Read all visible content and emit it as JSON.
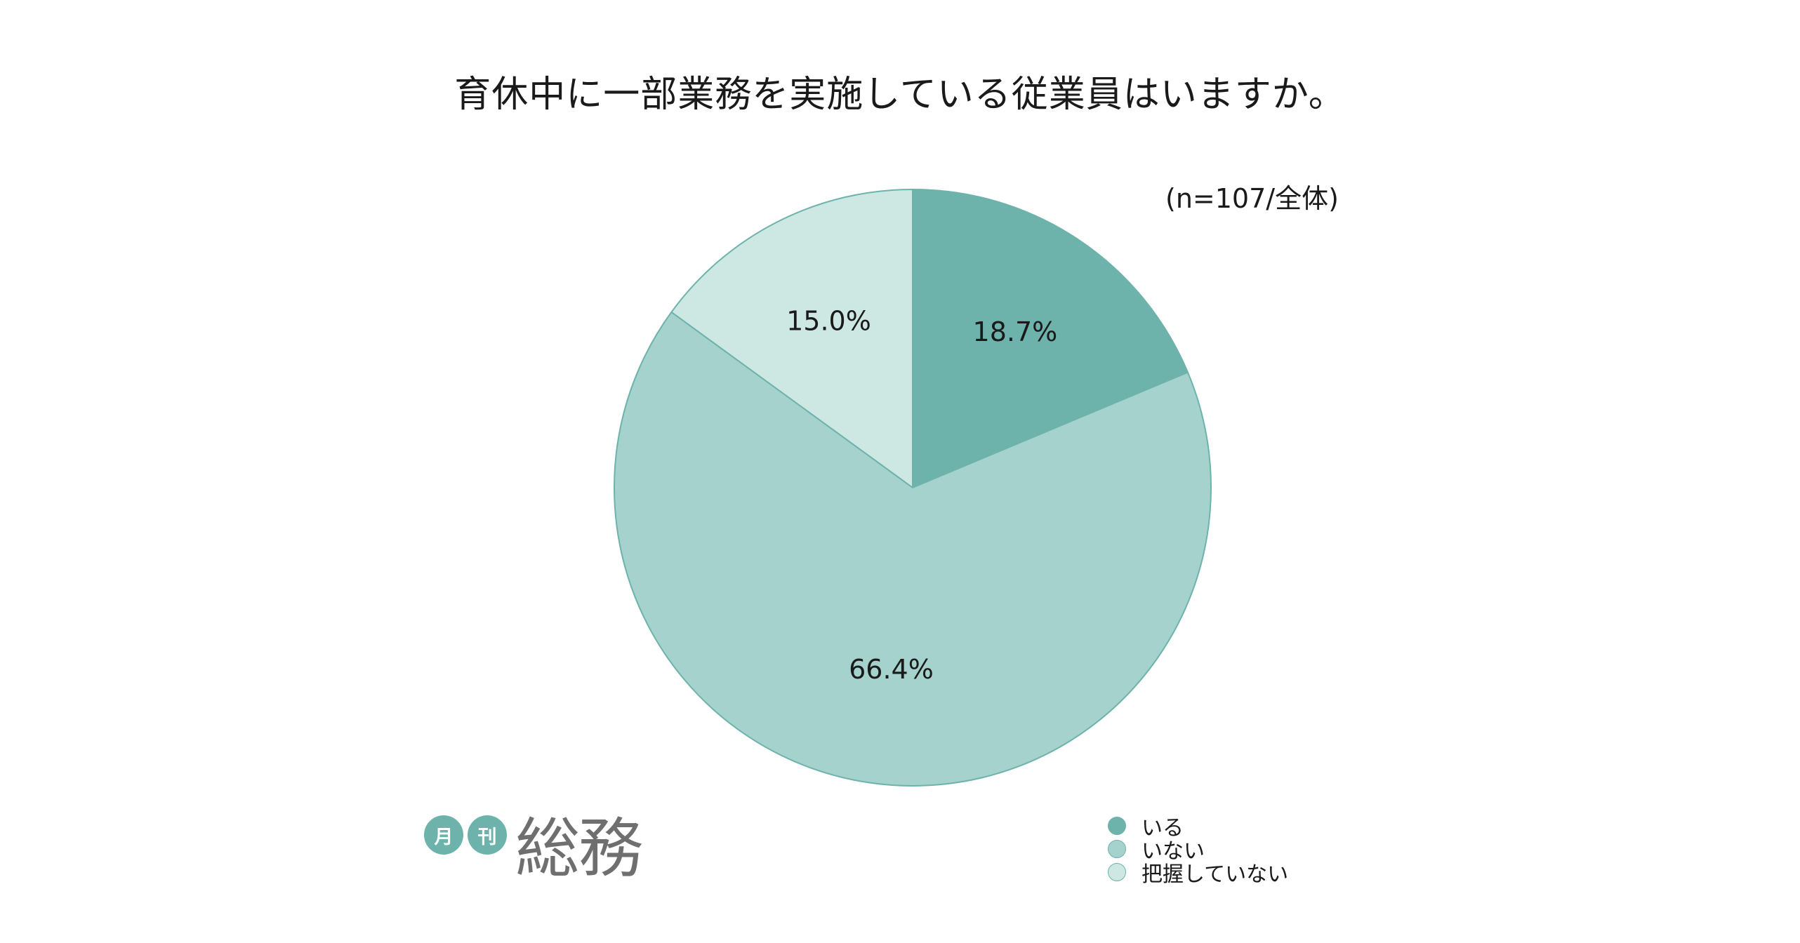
{
  "chart_data": {
    "type": "pie",
    "title": "育休中に一部業務を実施している従業員はいますか。",
    "note": "(n=107/全体)",
    "slices": [
      {
        "label": "いる",
        "value": 18.7,
        "value_label": "18.7%",
        "color": "#6db3ab"
      },
      {
        "label": "いない",
        "value": 66.4,
        "value_label": "66.4%",
        "color": "#a5d2cd"
      },
      {
        "label": "把握していない",
        "value": 15.0,
        "value_label": "15.0%",
        "color": "#cde7e3"
      }
    ],
    "start_angle": "12 o'clock",
    "direction": "clockwise",
    "edge_color": "#6db3ab",
    "legend_position": "bottom-right"
  },
  "logo": {
    "circle_1": "月",
    "circle_2": "刊",
    "main": "総務"
  }
}
